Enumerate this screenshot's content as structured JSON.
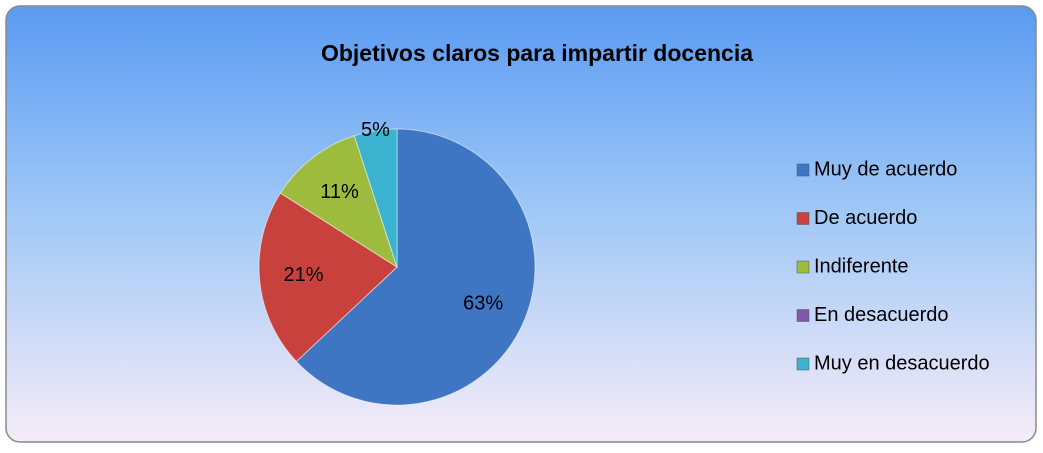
{
  "chart_data": {
    "type": "pie",
    "title": "Objetivos claros para impartir docencia",
    "categories": [
      "Muy de acuerdo",
      "De acuerdo",
      "Indiferente",
      "En desacuerdo",
      "Muy en desacuerdo"
    ],
    "values": [
      63,
      21,
      11,
      0,
      5
    ],
    "value_labels": [
      "63%",
      "21%",
      "11%",
      null,
      "5%"
    ],
    "colors": [
      "#3f76c4",
      "#c8413d",
      "#9dbb3c",
      "#7e5aa8",
      "#3bb2cf"
    ],
    "legend": "right"
  }
}
